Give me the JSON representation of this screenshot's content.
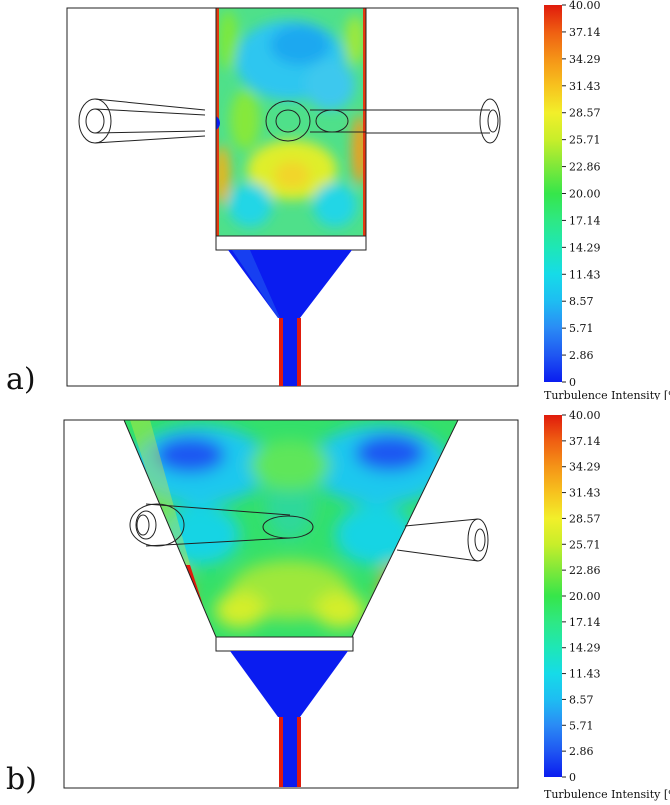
{
  "figure": {
    "panels": [
      {
        "label": "a)",
        "colorbar": {
          "title": "Turbulence Intensity [%]",
          "ticks": [
            "40.00",
            "37.14",
            "34.29",
            "31.43",
            "28.57",
            "25.71",
            "22.86",
            "20.00",
            "17.14",
            "14.29",
            "11.43",
            "8.57",
            "5.71",
            "2.86",
            "0"
          ]
        }
      },
      {
        "label": "b)",
        "colorbar": {
          "title": "Turbulence Intensity [%]",
          "ticks": [
            "40.00",
            "37.14",
            "34.29",
            "31.43",
            "28.57",
            "25.71",
            "22.86",
            "20.00",
            "17.14",
            "14.29",
            "11.43",
            "8.57",
            "5.71",
            "2.86",
            "0"
          ]
        }
      }
    ]
  },
  "colors": {
    "scale": [
      "#0a1cf0",
      "#1f56f2",
      "#2a8bf5",
      "#1ebdf2",
      "#16dbe8",
      "#1ee7b6",
      "#2ee884",
      "#36e64a",
      "#7ee83a",
      "#c8ee2a",
      "#f2ef2a",
      "#f7c21e",
      "#f59417",
      "#ef5f12",
      "#e01b0c"
    ]
  }
}
